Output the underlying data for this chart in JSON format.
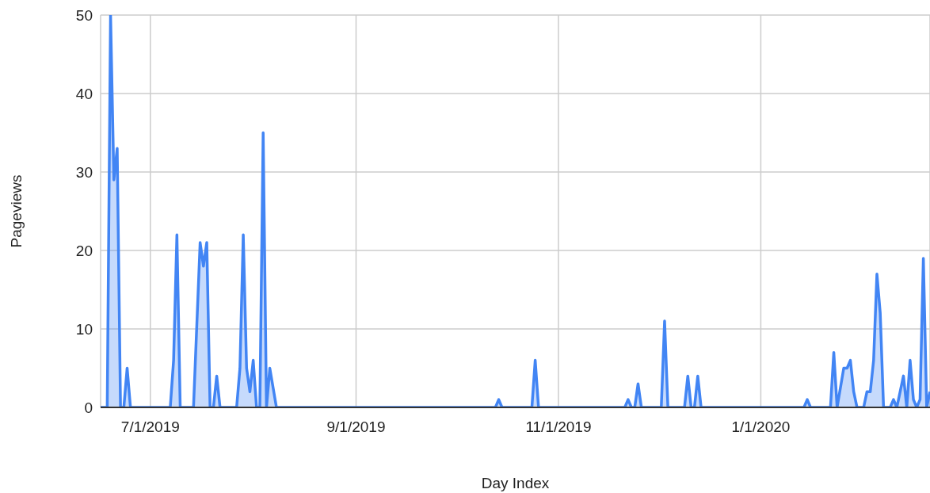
{
  "chart_data": {
    "type": "area",
    "xlabel": "Day Index",
    "ylabel": "Pageviews",
    "x": [
      "2019-06-16",
      "2019-06-18",
      "2019-06-19",
      "2019-06-20",
      "2019-06-21",
      "2019-06-22",
      "2019-06-23",
      "2019-06-24",
      "2019-06-25",
      "2019-07-07",
      "2019-07-08",
      "2019-07-09",
      "2019-07-10",
      "2019-07-14",
      "2019-07-16",
      "2019-07-17",
      "2019-07-18",
      "2019-07-19",
      "2019-07-20",
      "2019-07-21",
      "2019-07-22",
      "2019-07-27",
      "2019-07-28",
      "2019-07-29",
      "2019-07-30",
      "2019-07-31",
      "2019-08-01",
      "2019-08-02",
      "2019-08-03",
      "2019-08-04",
      "2019-08-05",
      "2019-08-06",
      "2019-08-08",
      "2019-10-13",
      "2019-10-14",
      "2019-10-15",
      "2019-10-24",
      "2019-10-25",
      "2019-10-26",
      "2019-11-21",
      "2019-11-22",
      "2019-11-23",
      "2019-11-24",
      "2019-11-25",
      "2019-11-26",
      "2019-12-02",
      "2019-12-03",
      "2019-12-04",
      "2019-12-09",
      "2019-12-10",
      "2019-12-11",
      "2019-12-12",
      "2019-12-13",
      "2019-12-14",
      "2020-01-14",
      "2020-01-15",
      "2020-01-16",
      "2020-01-22",
      "2020-01-23",
      "2020-01-24",
      "2020-01-26",
      "2020-01-27",
      "2020-01-28",
      "2020-01-29",
      "2020-01-30",
      "2020-02-01",
      "2020-02-02",
      "2020-02-03",
      "2020-02-04",
      "2020-02-05",
      "2020-02-06",
      "2020-02-07",
      "2020-02-09",
      "2020-02-10",
      "2020-02-11",
      "2020-02-13",
      "2020-02-14",
      "2020-02-15",
      "2020-02-16",
      "2020-02-17",
      "2020-02-18",
      "2020-02-19",
      "2020-02-20",
      "2020-02-21"
    ],
    "series": [
      {
        "color": "#4285f4",
        "values": [
          0,
          0,
          50,
          29,
          33,
          0,
          0,
          5,
          0,
          0,
          6,
          22,
          0,
          0,
          21,
          18,
          21,
          0,
          0,
          4,
          0,
          0,
          5,
          22,
          5,
          2,
          6,
          0,
          0,
          35,
          0,
          5,
          0,
          0,
          1,
          0,
          0,
          6,
          0,
          0,
          1,
          0,
          0,
          3,
          0,
          0,
          11,
          0,
          0,
          4,
          0,
          0,
          4,
          0,
          0,
          1,
          0,
          0,
          7,
          0,
          5,
          5,
          6,
          2,
          0,
          0,
          2,
          2,
          6,
          17,
          12,
          0,
          0,
          1,
          0,
          4,
          0,
          6,
          1,
          0,
          1,
          19,
          0,
          2
        ]
      }
    ],
    "xlim": [
      "2019-06-16",
      "2020-02-21"
    ],
    "xticks": [
      {
        "value": "2019-07-01",
        "label": "7/1/2019"
      },
      {
        "value": "2019-09-01",
        "label": "9/1/2019"
      },
      {
        "value": "2019-11-01",
        "label": "11/1/2019"
      },
      {
        "value": "2020-01-01",
        "label": "1/1/2020"
      }
    ],
    "ylim": [
      0,
      50
    ],
    "yticks": [
      0,
      10,
      20,
      30,
      40,
      50
    ],
    "grid": true
  }
}
